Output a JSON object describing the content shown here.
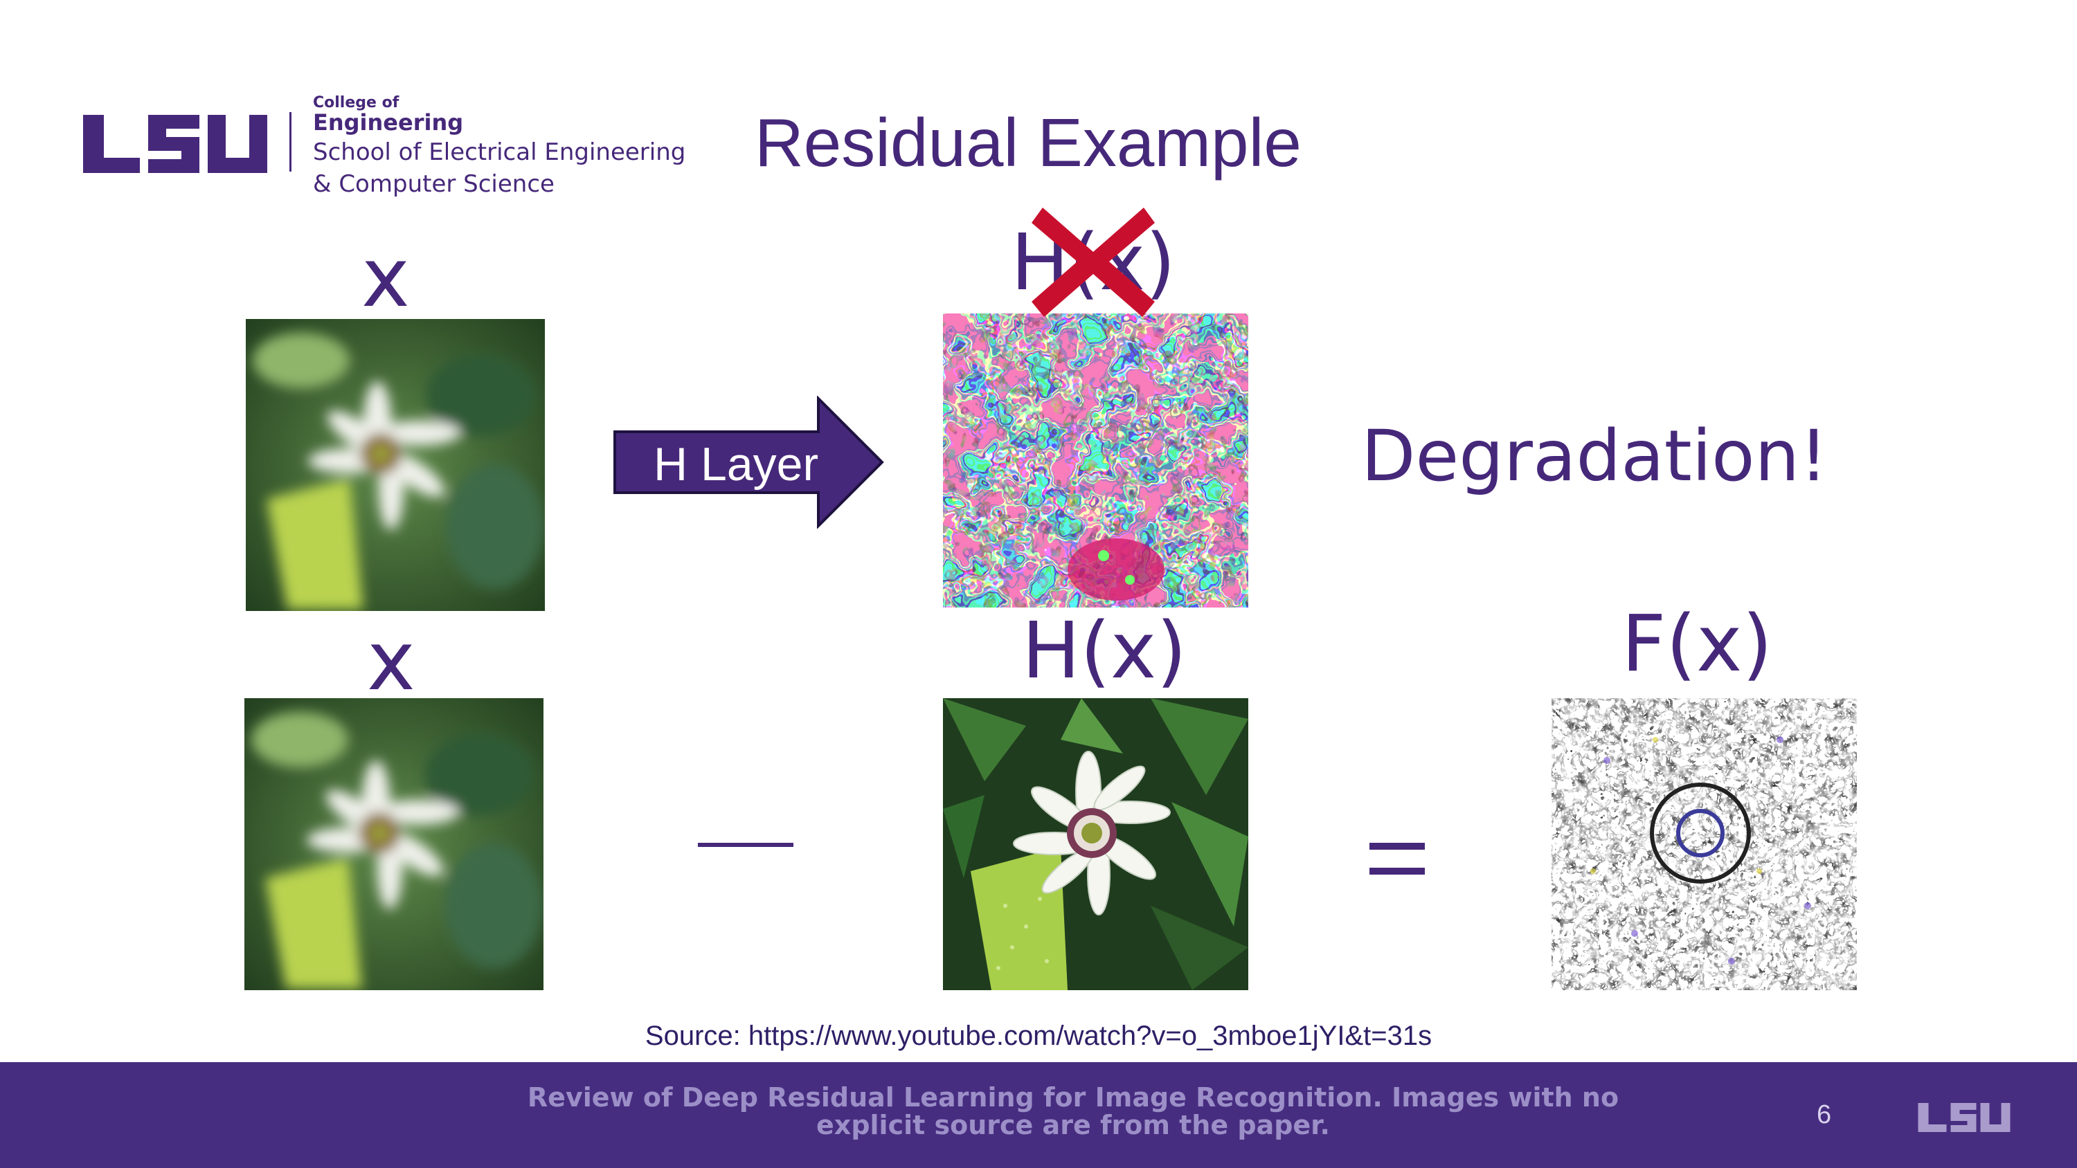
{
  "header": {
    "logo_text": "LSU",
    "college_of": "College of",
    "engineering": "Engineering",
    "school_line1": "School of Electrical Engineering",
    "school_line2": "& Computer Science"
  },
  "slide": {
    "title": "Residual Example",
    "top_row": {
      "input_label": "x",
      "arrow_label": "H Layer",
      "output_label": "H(x)",
      "output_crossed_out": true,
      "result_text": "Degradation!"
    },
    "bottom_row": {
      "input_label": "x",
      "operator_minus": "—",
      "target_label": "H(x)",
      "operator_equals": "=",
      "residual_label": "F(x)"
    },
    "images": {
      "input": "blurry passion flower",
      "degraded_output": "psychedelic distorted texture",
      "clean_output": "sharp passion flower",
      "residual": "edge-detail residual map"
    },
    "source": "Source: https://www.youtube.com/watch?v=o_3mboe1jYI&t=31s"
  },
  "footer": {
    "text": "Review of Deep Residual Learning for Image Recognition. Images with no explicit source are from the paper.",
    "page_number": "6",
    "logo_text": "LSU"
  },
  "colors": {
    "brand_purple": "#46287a",
    "footer_bg": "#472d80",
    "cross_red": "#c8102e"
  }
}
